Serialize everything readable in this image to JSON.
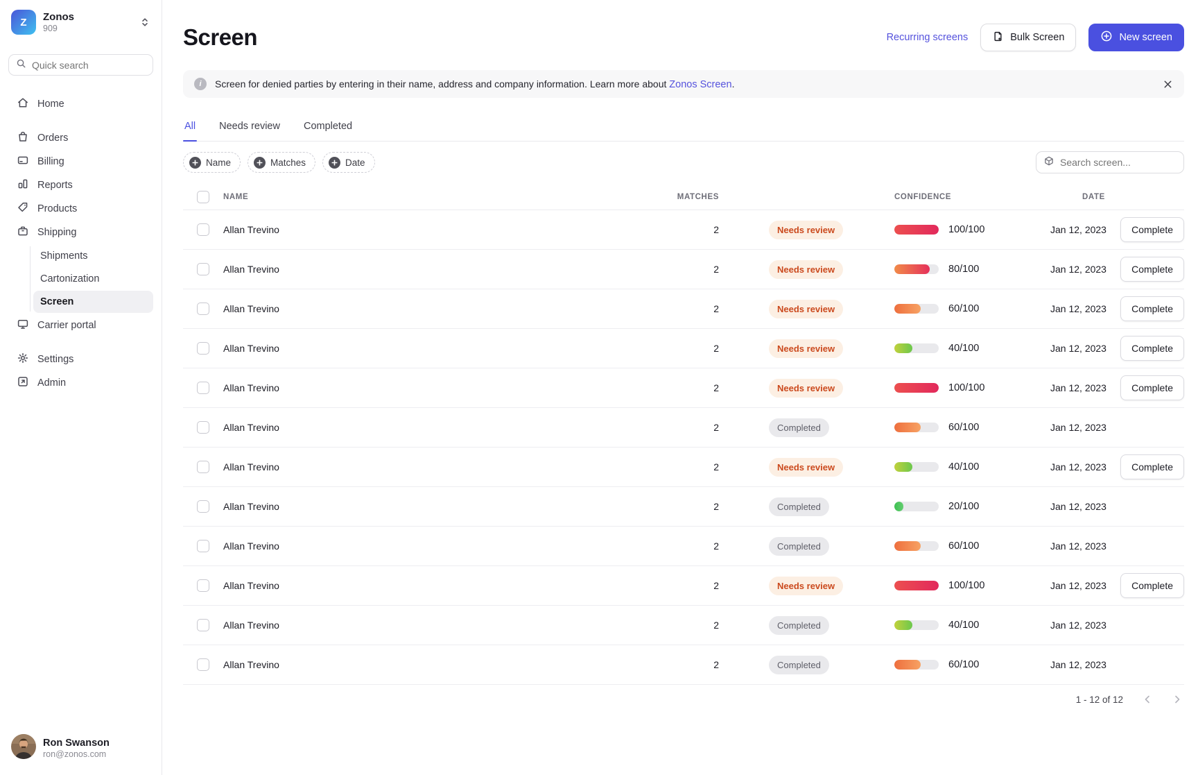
{
  "brand": {
    "name": "Zonos",
    "org": "909",
    "logo_letter": "Z"
  },
  "sidebar": {
    "quick_search_placeholder": "Quick search",
    "items": {
      "home": "Home",
      "orders": "Orders",
      "billing": "Billing",
      "reports": "Reports",
      "products": "Products",
      "shipping": "Shipping",
      "shipments": "Shipments",
      "cartonization": "Cartonization",
      "screen": "Screen",
      "carrier_portal": "Carrier portal",
      "settings": "Settings",
      "admin": "Admin"
    },
    "user": {
      "name": "Ron Swanson",
      "email": "ron@zonos.com"
    }
  },
  "header": {
    "title": "Screen",
    "recurring_link": "Recurring screens",
    "bulk_button": "Bulk Screen",
    "new_button": "New screen"
  },
  "banner": {
    "text": "Screen for denied parties by entering in their name, address and company information. Learn more about",
    "link_text": "Zonos Screen",
    "suffix": "."
  },
  "tabs": [
    {
      "label": "All",
      "active": true
    },
    {
      "label": "Needs review",
      "active": false
    },
    {
      "label": "Completed",
      "active": false
    }
  ],
  "filters": [
    {
      "label": "Name"
    },
    {
      "label": "Matches"
    },
    {
      "label": "Date"
    }
  ],
  "search": {
    "placeholder": "Search screen..."
  },
  "icons": {
    "info_glyph": "i"
  },
  "table": {
    "headers": {
      "name": "NAME",
      "matches": "MATCHES",
      "confidence": "CONFIDENCE",
      "date": "DATE"
    },
    "status_labels": {
      "review": "Needs review",
      "completed": "Completed"
    },
    "action_label": "Complete",
    "confidence_denominator": 100,
    "rows": [
      {
        "name": "Allan Trevino",
        "matches": 2,
        "status": "review",
        "confidence": 100,
        "date": "Jan 12, 2023",
        "has_action": true
      },
      {
        "name": "Allan Trevino",
        "matches": 2,
        "status": "review",
        "confidence": 80,
        "date": "Jan 12, 2023",
        "has_action": true
      },
      {
        "name": "Allan Trevino",
        "matches": 2,
        "status": "review",
        "confidence": 60,
        "date": "Jan 12, 2023",
        "has_action": true
      },
      {
        "name": "Allan Trevino",
        "matches": 2,
        "status": "review",
        "confidence": 40,
        "date": "Jan 12, 2023",
        "has_action": true
      },
      {
        "name": "Allan Trevino",
        "matches": 2,
        "status": "review",
        "confidence": 100,
        "date": "Jan 12, 2023",
        "has_action": true
      },
      {
        "name": "Allan Trevino",
        "matches": 2,
        "status": "completed",
        "confidence": 60,
        "date": "Jan 12, 2023",
        "has_action": false
      },
      {
        "name": "Allan Trevino",
        "matches": 2,
        "status": "review",
        "confidence": 40,
        "date": "Jan 12, 2023",
        "has_action": true
      },
      {
        "name": "Allan Trevino",
        "matches": 2,
        "status": "completed",
        "confidence": 20,
        "date": "Jan 12, 2023",
        "has_action": false
      },
      {
        "name": "Allan Trevino",
        "matches": 2,
        "status": "completed",
        "confidence": 60,
        "date": "Jan 12, 2023",
        "has_action": false
      },
      {
        "name": "Allan Trevino",
        "matches": 2,
        "status": "review",
        "confidence": 100,
        "date": "Jan 12, 2023",
        "has_action": true
      },
      {
        "name": "Allan Trevino",
        "matches": 2,
        "status": "completed",
        "confidence": 40,
        "date": "Jan 12, 2023",
        "has_action": false
      },
      {
        "name": "Allan Trevino",
        "matches": 2,
        "status": "completed",
        "confidence": 60,
        "date": "Jan 12, 2023",
        "has_action": false
      }
    ]
  },
  "pagination": {
    "label": "1 - 12 of 12"
  },
  "colors": {
    "accent": "#4a50e0",
    "link": "#5552dd",
    "bar_track": "#e9e9ec",
    "review_text": "#cb4a1e",
    "review_bg": "#fcefe3",
    "completed_text": "#5f5f69",
    "completed_bg": "#e9e9ec",
    "bar_gradients": {
      "100": [
        "#ec4f4f",
        "#e2295c"
      ],
      "80": [
        "#f18b49",
        "#e5305a"
      ],
      "60": [
        "#ee6f3e",
        "#f7a263"
      ],
      "40": [
        "#c1d13c",
        "#6cc84d"
      ],
      "20": [
        "#3fc153",
        "#64cd70"
      ]
    }
  }
}
